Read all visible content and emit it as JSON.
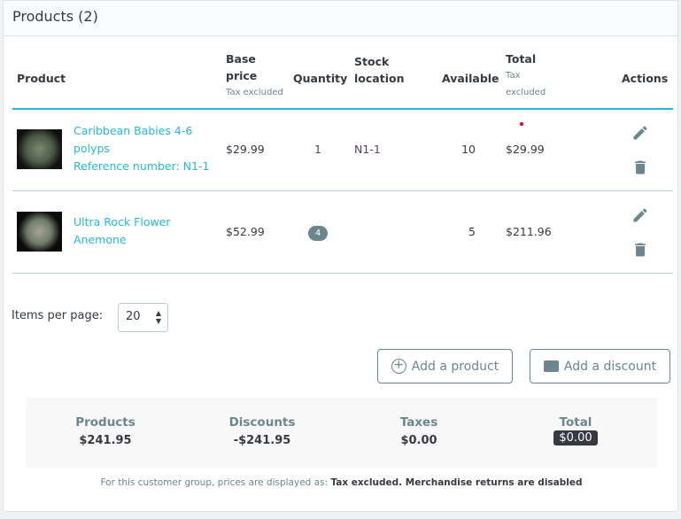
{
  "header": {
    "title": "Products (2)"
  },
  "table": {
    "columns": {
      "product": "Product",
      "base_price": "Base price",
      "base_price_sub": "Tax excluded",
      "quantity": "Quantity",
      "stock_location": "Stock location",
      "available": "Available",
      "total": "Total",
      "total_sub": "Tax excluded",
      "actions": "Actions"
    },
    "rows": [
      {
        "name": "Caribbean Babies 4-6 polyps",
        "reference": "Reference number: N1-1",
        "base_price": "$29.99",
        "quantity": "1",
        "stock_location": "N1-1",
        "available": "10",
        "total": "$29.99"
      },
      {
        "name": "Ultra Rock Flower Anemone",
        "reference": "",
        "base_price": "$52.99",
        "quantity": "4",
        "stock_location": "",
        "available": "5",
        "total": "$211.96"
      }
    ]
  },
  "pagination": {
    "label": "Items per page:",
    "value": "20"
  },
  "buttons": {
    "add_product": "Add a product",
    "add_discount": "Add a discount"
  },
  "summary": {
    "products_label": "Products",
    "products_value": "$241.95",
    "discounts_label": "Discounts",
    "discounts_value": "-$241.95",
    "taxes_label": "Taxes",
    "taxes_value": "$0.00",
    "total_label": "Total",
    "total_value": "$0.00"
  },
  "note": {
    "prefix": "For this customer group, prices are displayed as:",
    "bold": "Tax excluded. Merchandise returns are disabled"
  },
  "colors": {
    "accent": "#25b9d7",
    "muted": "#6c868e",
    "dark": "#363a41"
  }
}
